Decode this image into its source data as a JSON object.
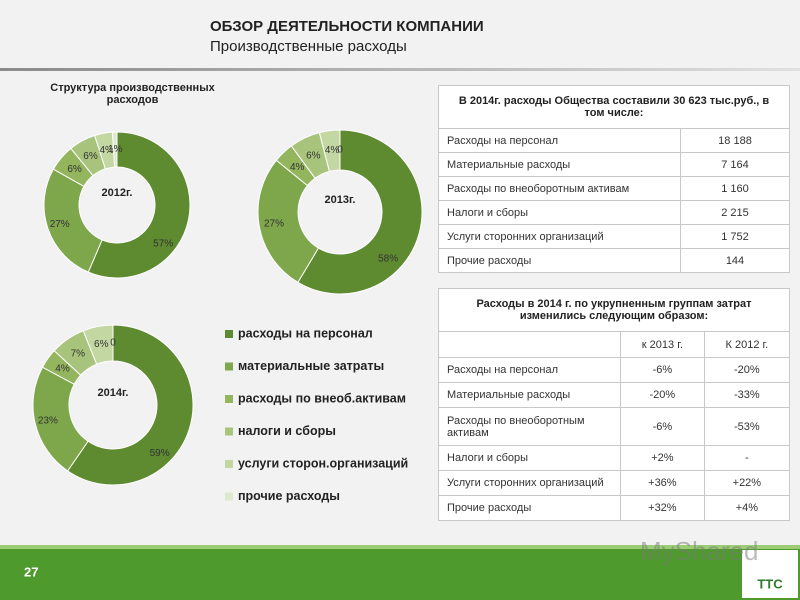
{
  "header": {
    "title": "ОБЗОР ДЕЯТЕЛЬНОСТИ КОМПАНИИ",
    "subtitle": "Производственные расходы"
  },
  "chart_data": [
    {
      "type": "donut",
      "title": "Структура производственных расходов",
      "center_label": "2012г.",
      "categories": [
        "расходы на персонал",
        "материальные затраты",
        "расходы по внеоб.активам",
        "налоги и сборы",
        "услуги сторон.организаций",
        "прочие расходы"
      ],
      "colors": [
        "#5e8a30",
        "#7ea64a",
        "#93b55e",
        "#a8c47c",
        "#c3d7a3",
        "#dde8cd"
      ],
      "values": [
        57,
        27,
        6,
        6,
        4,
        1
      ],
      "value_labels": [
        "57%",
        "27%",
        "6%",
        "6%",
        "4%",
        "1%"
      ]
    },
    {
      "type": "donut",
      "center_label": "2013г.",
      "values": [
        58,
        27,
        4,
        6,
        4,
        0
      ],
      "value_labels": [
        "58%",
        "27%",
        "4%",
        "6%",
        "4%",
        "0"
      ]
    },
    {
      "type": "donut",
      "center_label": "2014г.",
      "values": [
        59,
        23,
        4,
        7,
        6,
        0
      ],
      "value_labels": [
        "59%",
        "23%",
        "4%",
        "7%",
        "6%",
        "0"
      ]
    }
  ],
  "table1": {
    "title": "В 2014г. расходы Общества составили 30 623 тыс.руб., в том числе:",
    "rows": [
      [
        "Расходы на персонал",
        "18 188"
      ],
      [
        "Материальные расходы",
        "7 164"
      ],
      [
        "Расходы по внеоборотным активам",
        "1 160"
      ],
      [
        "Налоги и сборы",
        "2 215"
      ],
      [
        "Услуги сторонних организаций",
        "1 752"
      ],
      [
        "Прочие расходы",
        "144"
      ]
    ]
  },
  "table2": {
    "title": "Расходы в 2014 г. по укрупненным группам затрат изменились следующим образом:",
    "header": [
      "к 2013 г.",
      "К 2012 г."
    ],
    "rows": [
      [
        "Расходы на персонал",
        "-6%",
        "-20%"
      ],
      [
        "Материальные расходы",
        "-20%",
        "-33%"
      ],
      [
        "Расходы по внеоборотным активам",
        "-6%",
        "-53%"
      ],
      [
        "Налоги и сборы",
        "+2%",
        "-"
      ],
      [
        "Услуги сторонних организаций",
        "+36%",
        "+22%"
      ],
      [
        "Прочие расходы",
        "+32%",
        "+4%"
      ]
    ]
  },
  "footer": {
    "page": "27",
    "watermark": "MyShared",
    "logo": "ТТС"
  }
}
